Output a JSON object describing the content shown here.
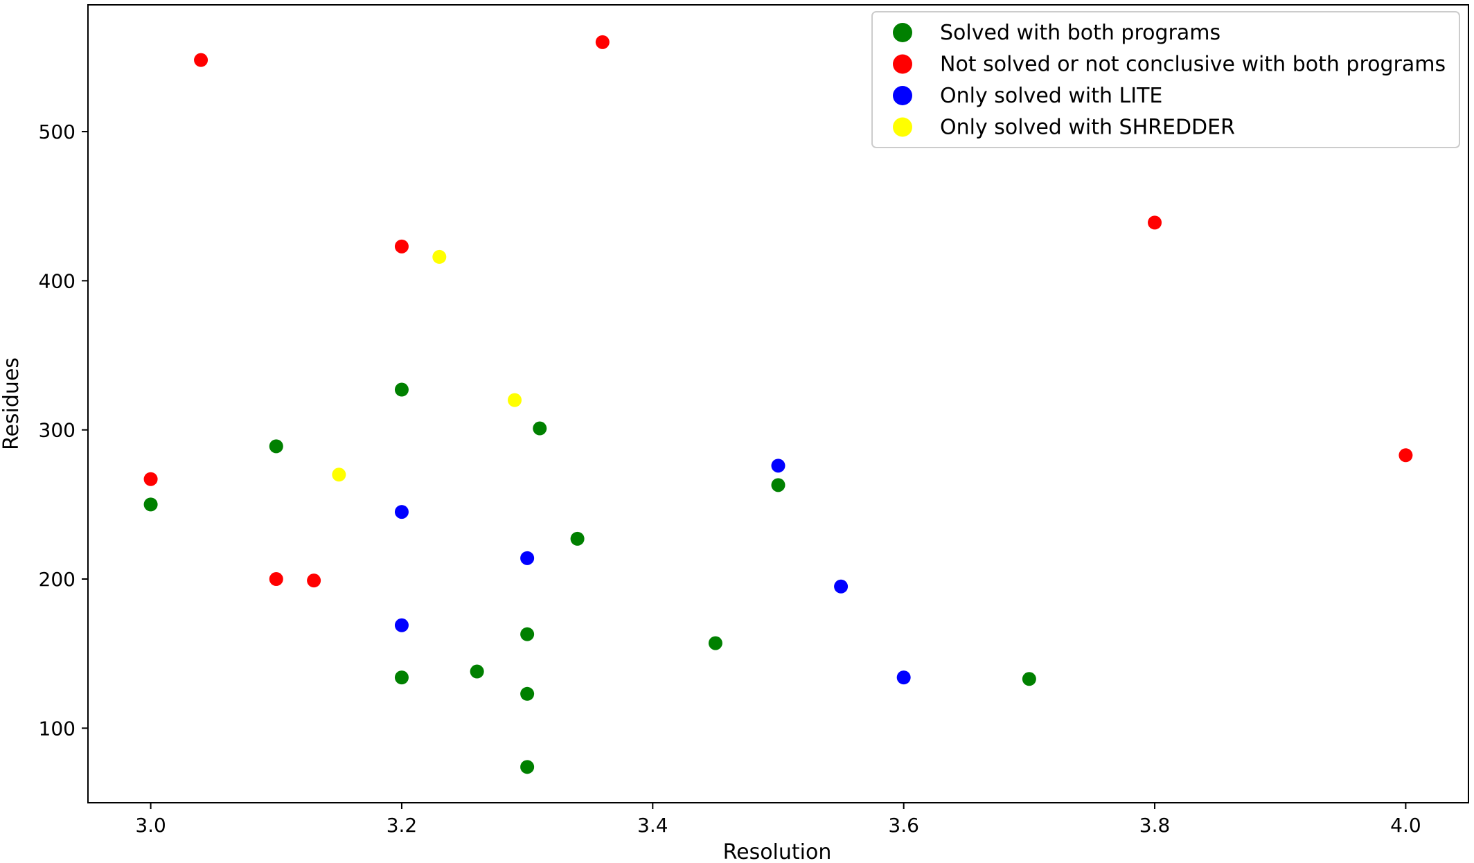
{
  "chart_data": {
    "type": "scatter",
    "title": "",
    "xlabel": "Resolution",
    "ylabel": "Residues",
    "xlim": [
      2.95,
      4.05
    ],
    "ylim": [
      50,
      585
    ],
    "xticks": [
      3.0,
      3.2,
      3.4,
      3.6,
      3.8,
      4.0
    ],
    "xtick_labels": [
      "3.0",
      "3.2",
      "3.4",
      "3.6",
      "3.8",
      "4.0"
    ],
    "yticks": [
      100,
      200,
      300,
      400,
      500
    ],
    "ytick_labels": [
      "100",
      "200",
      "300",
      "400",
      "500"
    ],
    "grid": false,
    "legend_position": "top-right",
    "series": [
      {
        "name": "Solved with both programs",
        "color": "#008000",
        "points": [
          {
            "x": 3.0,
            "y": 250
          },
          {
            "x": 3.1,
            "y": 289
          },
          {
            "x": 3.2,
            "y": 327
          },
          {
            "x": 3.2,
            "y": 134
          },
          {
            "x": 3.26,
            "y": 138
          },
          {
            "x": 3.3,
            "y": 163
          },
          {
            "x": 3.3,
            "y": 123
          },
          {
            "x": 3.3,
            "y": 74
          },
          {
            "x": 3.31,
            "y": 301
          },
          {
            "x": 3.34,
            "y": 227
          },
          {
            "x": 3.45,
            "y": 157
          },
          {
            "x": 3.5,
            "y": 263
          },
          {
            "x": 3.7,
            "y": 133
          }
        ]
      },
      {
        "name": "Not solved or not conclusive with both programs",
        "color": "#ff0000",
        "points": [
          {
            "x": 3.0,
            "y": 267
          },
          {
            "x": 3.04,
            "y": 548
          },
          {
            "x": 3.1,
            "y": 200
          },
          {
            "x": 3.13,
            "y": 199
          },
          {
            "x": 3.2,
            "y": 423
          },
          {
            "x": 3.36,
            "y": 560
          },
          {
            "x": 3.8,
            "y": 439
          },
          {
            "x": 4.0,
            "y": 283
          }
        ]
      },
      {
        "name": "Only solved with LITE",
        "color": "#0000ff",
        "points": [
          {
            "x": 3.2,
            "y": 245
          },
          {
            "x": 3.2,
            "y": 169
          },
          {
            "x": 3.3,
            "y": 214
          },
          {
            "x": 3.5,
            "y": 276
          },
          {
            "x": 3.55,
            "y": 195
          },
          {
            "x": 3.6,
            "y": 134
          }
        ]
      },
      {
        "name": "Only solved with SHREDDER",
        "color": "#ffff00",
        "points": [
          {
            "x": 3.15,
            "y": 270
          },
          {
            "x": 3.23,
            "y": 416
          },
          {
            "x": 3.29,
            "y": 320
          }
        ]
      }
    ]
  }
}
